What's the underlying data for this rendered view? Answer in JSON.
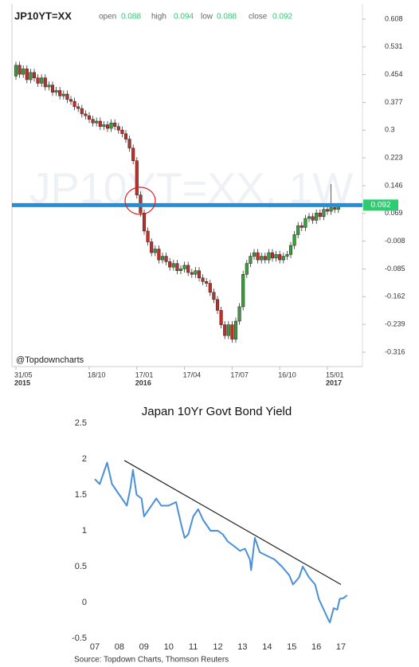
{
  "chart_data": [
    {
      "type": "candlestick",
      "title": "JP10YT=XX",
      "watermark": "JP10YT=XX, 1W",
      "credit": "@Topdowncharts",
      "ohlc_labels": [
        "open",
        "high",
        "low",
        "close"
      ],
      "open": [
        0.45,
        0.48,
        0.455,
        0.47,
        0.44,
        0.46,
        0.445,
        0.43,
        0.445,
        0.42,
        0.425,
        0.405,
        0.41,
        0.395,
        0.4,
        0.385,
        0.38,
        0.365,
        0.36,
        0.345,
        0.34,
        0.33,
        0.32,
        0.325,
        0.31,
        0.315,
        0.305,
        0.32,
        0.31,
        0.3,
        0.29,
        0.275,
        0.25,
        0.215,
        0.12,
        0.07,
        0.02,
        -0.01,
        -0.04,
        -0.03,
        -0.06,
        -0.05,
        -0.065,
        -0.08,
        -0.07,
        -0.09,
        -0.085,
        -0.075,
        -0.095,
        -0.1,
        -0.09,
        -0.11,
        -0.12,
        -0.125,
        -0.15,
        -0.17,
        -0.2,
        -0.24,
        -0.27,
        -0.24,
        -0.28,
        -0.23,
        -0.19,
        -0.1,
        -0.07,
        -0.05,
        -0.04,
        -0.06,
        -0.05,
        -0.06,
        -0.04,
        -0.055,
        -0.045,
        -0.06,
        -0.05,
        -0.045,
        -0.02,
        0.01,
        0.035,
        0.03,
        0.055,
        0.06,
        0.05,
        0.07,
        0.06,
        0.08,
        0.075,
        0.085,
        0.08,
        0.088
      ],
      "high": [
        0.49,
        0.49,
        0.48,
        0.48,
        0.47,
        0.47,
        0.455,
        0.455,
        0.455,
        0.435,
        0.435,
        0.42,
        0.42,
        0.41,
        0.41,
        0.395,
        0.39,
        0.375,
        0.37,
        0.355,
        0.35,
        0.34,
        0.335,
        0.335,
        0.325,
        0.325,
        0.33,
        0.33,
        0.32,
        0.31,
        0.3,
        0.285,
        0.26,
        0.225,
        0.13,
        0.08,
        0.03,
        0.0,
        -0.02,
        -0.02,
        -0.04,
        -0.04,
        -0.055,
        -0.06,
        -0.06,
        -0.075,
        -0.065,
        -0.065,
        -0.085,
        -0.08,
        -0.08,
        -0.1,
        -0.11,
        -0.115,
        -0.14,
        -0.16,
        -0.19,
        -0.23,
        -0.23,
        -0.23,
        -0.22,
        -0.18,
        -0.09,
        -0.06,
        -0.04,
        -0.03,
        -0.03,
        -0.04,
        -0.04,
        -0.03,
        -0.03,
        -0.035,
        -0.035,
        -0.04,
        -0.035,
        -0.01,
        0.02,
        0.045,
        0.045,
        0.065,
        0.07,
        0.07,
        0.08,
        0.08,
        0.09,
        0.09,
        0.15,
        0.095,
        0.098,
        0.094
      ],
      "low": [
        0.44,
        0.445,
        0.445,
        0.43,
        0.43,
        0.435,
        0.42,
        0.42,
        0.41,
        0.41,
        0.395,
        0.395,
        0.385,
        0.385,
        0.375,
        0.37,
        0.355,
        0.35,
        0.335,
        0.33,
        0.32,
        0.31,
        0.31,
        0.3,
        0.3,
        0.295,
        0.295,
        0.3,
        0.29,
        0.28,
        0.265,
        0.24,
        0.205,
        0.11,
        0.06,
        0.01,
        -0.02,
        -0.05,
        -0.05,
        -0.07,
        -0.07,
        -0.075,
        -0.09,
        -0.09,
        -0.1,
        -0.1,
        -0.095,
        -0.105,
        -0.11,
        -0.11,
        -0.12,
        -0.13,
        -0.135,
        -0.16,
        -0.18,
        -0.21,
        -0.25,
        -0.28,
        -0.28,
        -0.29,
        -0.29,
        -0.24,
        -0.2,
        -0.11,
        -0.08,
        -0.06,
        -0.07,
        -0.07,
        -0.07,
        -0.07,
        -0.065,
        -0.065,
        -0.07,
        -0.07,
        -0.06,
        -0.055,
        -0.03,
        0.0,
        0.02,
        0.02,
        0.045,
        0.04,
        0.04,
        0.05,
        0.05,
        0.065,
        0.065,
        0.07,
        0.07,
        0.088
      ],
      "close": [
        0.48,
        0.455,
        0.47,
        0.44,
        0.46,
        0.445,
        0.43,
        0.445,
        0.42,
        0.425,
        0.405,
        0.41,
        0.395,
        0.4,
        0.385,
        0.38,
        0.365,
        0.36,
        0.345,
        0.34,
        0.33,
        0.32,
        0.325,
        0.31,
        0.315,
        0.305,
        0.32,
        0.31,
        0.3,
        0.29,
        0.275,
        0.25,
        0.215,
        0.12,
        0.07,
        0.02,
        -0.01,
        -0.04,
        -0.03,
        -0.06,
        -0.05,
        -0.065,
        -0.08,
        -0.07,
        -0.09,
        -0.085,
        -0.075,
        -0.095,
        -0.1,
        -0.09,
        -0.11,
        -0.12,
        -0.125,
        -0.15,
        -0.17,
        -0.2,
        -0.24,
        -0.27,
        -0.24,
        -0.28,
        -0.23,
        -0.19,
        -0.1,
        -0.07,
        -0.05,
        -0.04,
        -0.06,
        -0.05,
        -0.06,
        -0.04,
        -0.055,
        -0.045,
        -0.06,
        -0.05,
        -0.045,
        -0.02,
        0.01,
        0.035,
        0.03,
        0.055,
        0.06,
        0.05,
        0.07,
        0.06,
        0.08,
        0.075,
        0.085,
        0.08,
        0.088,
        0.092
      ],
      "up_color": "#3c9d3c",
      "down_color": "#c0302b",
      "value_color": "#2ecc71",
      "line_color": "#1e8fd8",
      "ylim": [
        -0.356,
        0.65
      ],
      "yticks": [
        0.608,
        0.531,
        0.454,
        0.377,
        0.3,
        0.223,
        0.146,
        0.069,
        -0.008,
        -0.085,
        -0.162,
        -0.239,
        -0.316
      ],
      "xticks": [
        {
          "value": 0,
          "label": "31/05",
          "year": "2015"
        },
        {
          "value": 20,
          "label": "18/10"
        },
        {
          "value": 33,
          "label": "17/01",
          "year": "2016"
        },
        {
          "value": 46,
          "label": "17/04"
        },
        {
          "value": 59,
          "label": "17/07"
        },
        {
          "value": 72,
          "label": "16/10"
        },
        {
          "value": 85,
          "label": "15/01",
          "year": "2017"
        }
      ]
    },
    {
      "type": "line",
      "title": "Japan 10Yr Govt Bond Yield",
      "source": "Source: Topdown Charts, Thomson Reuters",
      "color": "#4a90d9",
      "x": [
        2007.0,
        2007.2,
        2007.4,
        2007.5,
        2007.7,
        2007.9,
        2008.1,
        2008.3,
        2008.45,
        2008.55,
        2008.7,
        2008.9,
        2009.0,
        2009.2,
        2009.5,
        2009.7,
        2010.0,
        2010.3,
        2010.5,
        2010.65,
        2010.8,
        2011.0,
        2011.2,
        2011.4,
        2011.7,
        2012.0,
        2012.2,
        2012.4,
        2012.6,
        2012.9,
        2013.1,
        2013.3,
        2013.35,
        2013.5,
        2013.7,
        2014.0,
        2014.3,
        2014.6,
        2014.9,
        2015.05,
        2015.3,
        2015.45,
        2015.7,
        2015.95,
        2016.1,
        2016.3,
        2016.5,
        2016.55,
        2016.7,
        2016.85,
        2016.95,
        2017.1,
        2017.25
      ],
      "y": [
        1.72,
        1.65,
        1.85,
        1.95,
        1.65,
        1.55,
        1.45,
        1.35,
        1.6,
        1.85,
        1.5,
        1.45,
        1.2,
        1.3,
        1.45,
        1.35,
        1.35,
        1.4,
        1.1,
        0.9,
        0.95,
        1.2,
        1.3,
        1.15,
        1.0,
        1.0,
        0.95,
        0.85,
        0.8,
        0.72,
        0.75,
        0.6,
        0.45,
        0.9,
        0.7,
        0.65,
        0.6,
        0.5,
        0.38,
        0.25,
        0.35,
        0.5,
        0.35,
        0.25,
        0.05,
        -0.1,
        -0.25,
        -0.28,
        -0.08,
        -0.1,
        0.05,
        0.06,
        0.1
      ],
      "trendline": {
        "x": [
          2008.2,
          2017.0
        ],
        "y": [
          1.98,
          0.25
        ],
        "color": "#222222"
      },
      "xlim": [
        2007,
        2017.5
      ],
      "ylim": [
        -0.5,
        2.5
      ],
      "xticks": [
        {
          "value": 2007,
          "label": "07"
        },
        {
          "value": 2008,
          "label": "08"
        },
        {
          "value": 2009,
          "label": "09"
        },
        {
          "value": 2010,
          "label": "10"
        },
        {
          "value": 2011,
          "label": "11"
        },
        {
          "value": 2012,
          "label": "12"
        },
        {
          "value": 2013,
          "label": "13"
        },
        {
          "value": 2014,
          "label": "14"
        },
        {
          "value": 2015,
          "label": "15"
        },
        {
          "value": 2016,
          "label": "16"
        },
        {
          "value": 2017,
          "label": "17"
        }
      ],
      "yticks": [
        -0.5,
        0,
        0.5,
        1,
        1.5,
        2,
        2.5
      ]
    }
  ]
}
